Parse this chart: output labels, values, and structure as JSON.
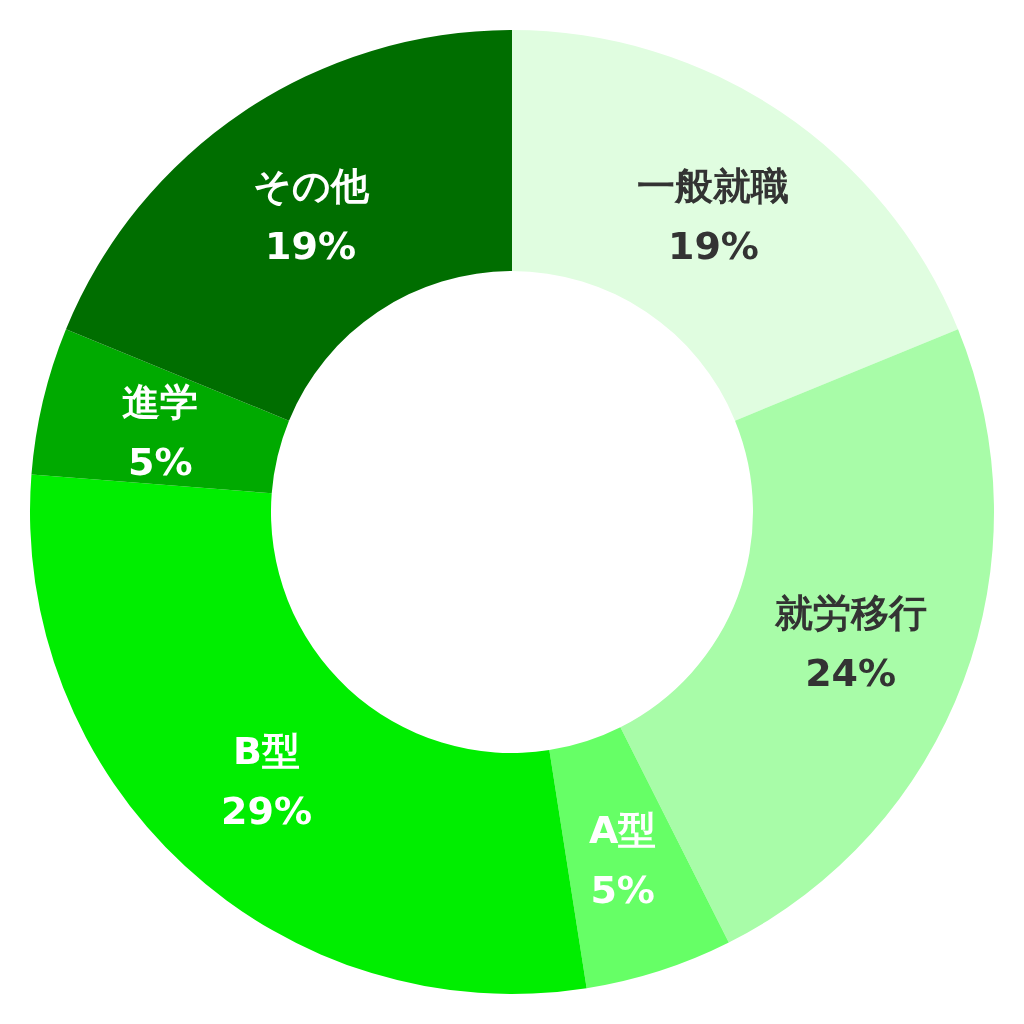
{
  "chart_data": {
    "type": "donut",
    "categories": [
      "一般就職",
      "就労移行",
      "A型",
      "B型",
      "進学",
      "その他"
    ],
    "values": [
      19,
      24,
      5,
      29,
      5,
      19
    ],
    "colors": [
      "#e0fde0",
      "#a8fca8",
      "#66ff66",
      "#00ee00",
      "#00aa00",
      "#006e00"
    ],
    "value_labels": [
      "19%",
      "24%",
      "5%",
      "29%",
      "5%",
      "19%"
    ]
  }
}
